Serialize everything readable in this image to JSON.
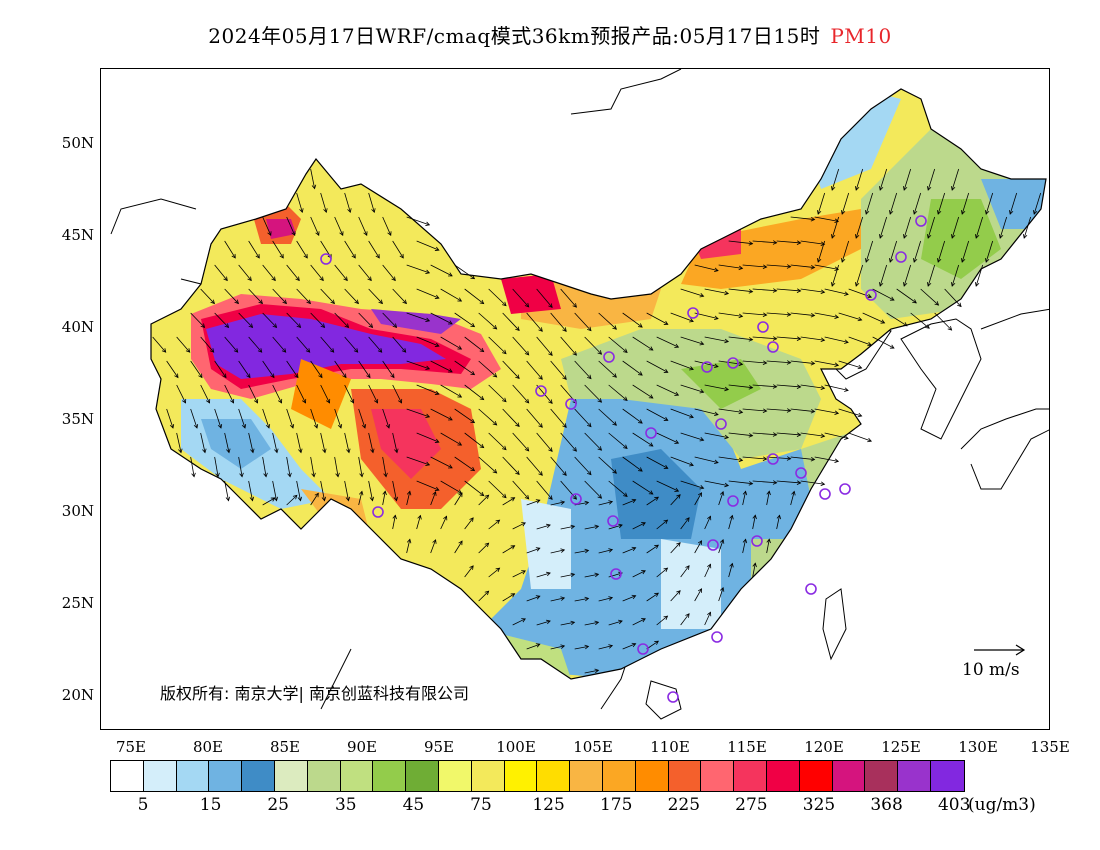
{
  "title": {
    "main": "2024年05月17日WRF/cmaq模式36km预报产品:05月17日15时",
    "variable": "PM10"
  },
  "axes": {
    "lat_labels": [
      "50N",
      "45N",
      "40N",
      "35N",
      "30N",
      "25N",
      "20N"
    ],
    "lon_labels": [
      "75E",
      "80E",
      "85E",
      "90E",
      "95E",
      "100E",
      "105E",
      "110E",
      "115E",
      "120E",
      "125E",
      "130E",
      "135E"
    ]
  },
  "copyright": "版权所有: 南京大学| 南京创蓝科技有限公司",
  "wind_scale": {
    "label": "10 m/s"
  },
  "colorbar": {
    "colors": [
      "#ffffff",
      "#d4eefa",
      "#a4d8f3",
      "#6fb3e2",
      "#3f8cc6",
      "#dcebbf",
      "#bcd98c",
      "#c0e080",
      "#93cc4b",
      "#6fad35",
      "#f1f86a",
      "#f3e95b",
      "#fff100",
      "#ffdd00",
      "#f9b543",
      "#fba723",
      "#ff8c00",
      "#f4602c",
      "#ff6670",
      "#f5345d",
      "#f00045",
      "#ff0000",
      "#d5147e",
      "#a8305c",
      "#9933cc",
      "#8228e0"
    ],
    "labels": [
      "5",
      "15",
      "25",
      "35",
      "45",
      "75",
      "125",
      "175",
      "225",
      "275",
      "325",
      "368",
      "403"
    ],
    "unit": "(ug/m3)"
  },
  "colors": {
    "title_variable": "#e8262b",
    "city_marker": "#8a2be2"
  }
}
